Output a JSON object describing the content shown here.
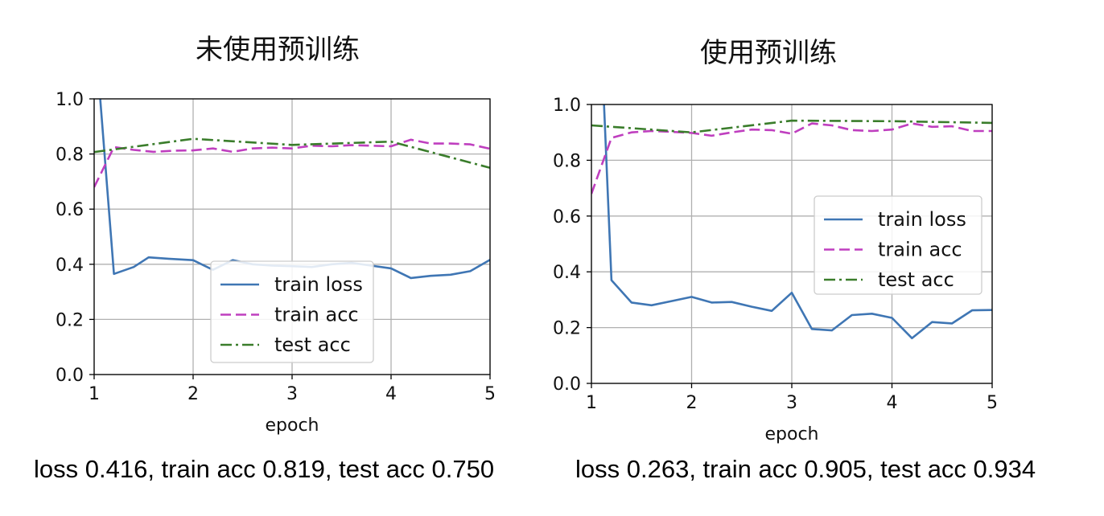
{
  "chart_data": [
    {
      "type": "line",
      "title": "未使用预训练",
      "xlabel": "epoch",
      "ylabel": "",
      "xlim": [
        1,
        5
      ],
      "ylim": [
        0.0,
        1.0
      ],
      "xticks": [
        "1",
        "2",
        "3",
        "4",
        "5"
      ],
      "yticks": [
        "0.0",
        "0.2",
        "0.4",
        "0.6",
        "0.8",
        "1.0"
      ],
      "grid": true,
      "legend": "lower-center",
      "summary": "loss 0.416, train acc 0.819, test acc 0.750",
      "series": [
        {
          "name": "train loss",
          "color": "#3f76b4",
          "dash": "solid",
          "x": [
            1.05,
            1.2,
            1.4,
            1.55,
            1.75,
            2.0,
            2.2,
            2.4,
            2.6,
            2.8,
            3.0,
            3.2,
            3.4,
            3.6,
            3.8,
            4.0,
            4.2,
            4.4,
            4.6,
            4.8,
            5.0
          ],
          "y": [
            1.05,
            0.365,
            0.39,
            0.425,
            0.42,
            0.415,
            0.38,
            0.415,
            0.4,
            0.395,
            0.393,
            0.39,
            0.4,
            0.405,
            0.395,
            0.385,
            0.35,
            0.358,
            0.362,
            0.375,
            0.416
          ]
        },
        {
          "name": "train acc",
          "color": "#bf3fbf",
          "dash": "dashed",
          "x": [
            1.0,
            1.2,
            1.4,
            1.6,
            1.8,
            2.0,
            2.2,
            2.4,
            2.6,
            2.8,
            3.0,
            3.2,
            3.4,
            3.6,
            3.8,
            4.0,
            4.2,
            4.4,
            4.6,
            4.8,
            5.0
          ],
          "y": [
            0.68,
            0.825,
            0.815,
            0.808,
            0.812,
            0.813,
            0.82,
            0.808,
            0.82,
            0.823,
            0.82,
            0.83,
            0.828,
            0.832,
            0.83,
            0.828,
            0.852,
            0.838,
            0.838,
            0.835,
            0.819
          ]
        },
        {
          "name": "test acc",
          "color": "#3a7d2b",
          "dash": "dashdot",
          "x": [
            1,
            2,
            3,
            4,
            5
          ],
          "y": [
            0.807,
            0.855,
            0.833,
            0.845,
            0.75
          ]
        }
      ]
    },
    {
      "type": "line",
      "title": "使用预训练",
      "xlabel": "epoch",
      "ylabel": "",
      "xlim": [
        1,
        5
      ],
      "ylim": [
        0.0,
        1.0
      ],
      "xticks": [
        "1",
        "2",
        "3",
        "4",
        "5"
      ],
      "yticks": [
        "0.0",
        "0.2",
        "0.4",
        "0.6",
        "0.8",
        "1.0"
      ],
      "grid": true,
      "legend": "center-right",
      "summary": "loss 0.263, train acc 0.905, test acc 0.934",
      "series": [
        {
          "name": "train loss",
          "color": "#3f76b4",
          "dash": "solid",
          "x": [
            1.12,
            1.2,
            1.4,
            1.6,
            1.8,
            2.0,
            2.2,
            2.4,
            2.6,
            2.8,
            3.0,
            3.2,
            3.4,
            3.6,
            3.8,
            4.0,
            4.2,
            4.4,
            4.6,
            4.8,
            5.0
          ],
          "y": [
            1.05,
            0.37,
            0.29,
            0.28,
            0.295,
            0.31,
            0.29,
            0.292,
            0.275,
            0.26,
            0.325,
            0.195,
            0.19,
            0.245,
            0.25,
            0.235,
            0.162,
            0.22,
            0.215,
            0.262,
            0.263
          ]
        },
        {
          "name": "train acc",
          "color": "#bf3fbf",
          "dash": "dashed",
          "x": [
            1.0,
            1.2,
            1.4,
            1.6,
            1.8,
            2.0,
            2.2,
            2.4,
            2.6,
            2.8,
            3.0,
            3.2,
            3.4,
            3.6,
            3.8,
            4.0,
            4.2,
            4.4,
            4.6,
            4.8,
            5.0
          ],
          "y": [
            0.68,
            0.88,
            0.9,
            0.905,
            0.902,
            0.898,
            0.888,
            0.9,
            0.91,
            0.908,
            0.895,
            0.932,
            0.925,
            0.908,
            0.905,
            0.91,
            0.932,
            0.92,
            0.922,
            0.905,
            0.905
          ]
        },
        {
          "name": "test acc",
          "color": "#3a7d2b",
          "dash": "dashdot",
          "x": [
            1,
            2,
            3,
            4,
            5
          ],
          "y": [
            0.925,
            0.9,
            0.942,
            0.94,
            0.934
          ]
        }
      ]
    }
  ]
}
